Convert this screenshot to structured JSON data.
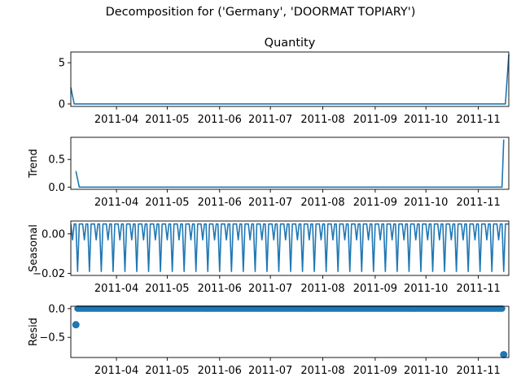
{
  "figure": {
    "suptitle": "Decomposition for ('Germany', 'DOORMAT TOPIARY')"
  },
  "chart_data": [
    {
      "type": "line",
      "title": "Quantity",
      "ylabel": "",
      "x_ticks": [
        "2011-04",
        "2011-05",
        "2011-06",
        "2011-07",
        "2011-08",
        "2011-09",
        "2011-10",
        "2011-11"
      ],
      "xlim": [
        "2011-03-05",
        "2011-11-19"
      ],
      "ylim": [
        -0.3,
        6.3
      ],
      "y_ticks": [
        0,
        5
      ],
      "y_tick_labels": [
        "0",
        "5"
      ],
      "color": "#1f77b4",
      "points": [
        {
          "x": "2011-03-05",
          "y": 2
        },
        {
          "x": "2011-03-07",
          "y": 0
        },
        {
          "x": "2011-11-17",
          "y": 0
        },
        {
          "x": "2011-11-19",
          "y": 6
        }
      ]
    },
    {
      "type": "line",
      "title": "",
      "ylabel": "Trend",
      "x_ticks": [
        "2011-04",
        "2011-05",
        "2011-06",
        "2011-07",
        "2011-08",
        "2011-09",
        "2011-10",
        "2011-11"
      ],
      "xlim": [
        "2011-03-05",
        "2011-11-19"
      ],
      "ylim": [
        -0.04,
        0.9
      ],
      "y_ticks": [
        0.0,
        0.5
      ],
      "y_tick_labels": [
        "0.0",
        "0.5"
      ],
      "color": "#1f77b4",
      "points": [
        {
          "x": "2011-03-08",
          "y": 0.29
        },
        {
          "x": "2011-03-10",
          "y": 0.0
        },
        {
          "x": "2011-11-15",
          "y": 0.0
        },
        {
          "x": "2011-11-16",
          "y": 0.86
        }
      ]
    },
    {
      "type": "line",
      "title": "",
      "ylabel": "Seasonal",
      "x_ticks": [
        "2011-04",
        "2011-05",
        "2011-06",
        "2011-07",
        "2011-08",
        "2011-09",
        "2011-10",
        "2011-11"
      ],
      "xlim": [
        "2011-03-05",
        "2011-11-19"
      ],
      "ylim": [
        -0.021,
        0.0065
      ],
      "y_ticks": [
        0.0,
        -0.02
      ],
      "y_tick_labels": [
        "0.00",
        "−0.02"
      ],
      "color": "#1f77b4",
      "period_days": 7,
      "pattern": [
        0.005,
        -0.003,
        0.005,
        0.005,
        -0.019,
        0.005,
        0.005
      ]
    },
    {
      "type": "scatter",
      "title": "",
      "ylabel": "Resid",
      "x_ticks": [
        "2011-04",
        "2011-05",
        "2011-06",
        "2011-07",
        "2011-08",
        "2011-09",
        "2011-10",
        "2011-11"
      ],
      "xlim": [
        "2011-03-05",
        "2011-11-19"
      ],
      "ylim": [
        -0.85,
        0.04
      ],
      "y_ticks": [
        0.0,
        -0.5
      ],
      "y_tick_labels": [
        "0.0",
        "−0.5"
      ],
      "color": "#1f77b4",
      "baseline": {
        "x_start": "2011-03-09",
        "x_end": "2011-11-15",
        "y": 0.0
      },
      "outliers": [
        {
          "x": "2011-03-08",
          "y": -0.28
        },
        {
          "x": "2011-11-16",
          "y": -0.8
        }
      ]
    }
  ]
}
